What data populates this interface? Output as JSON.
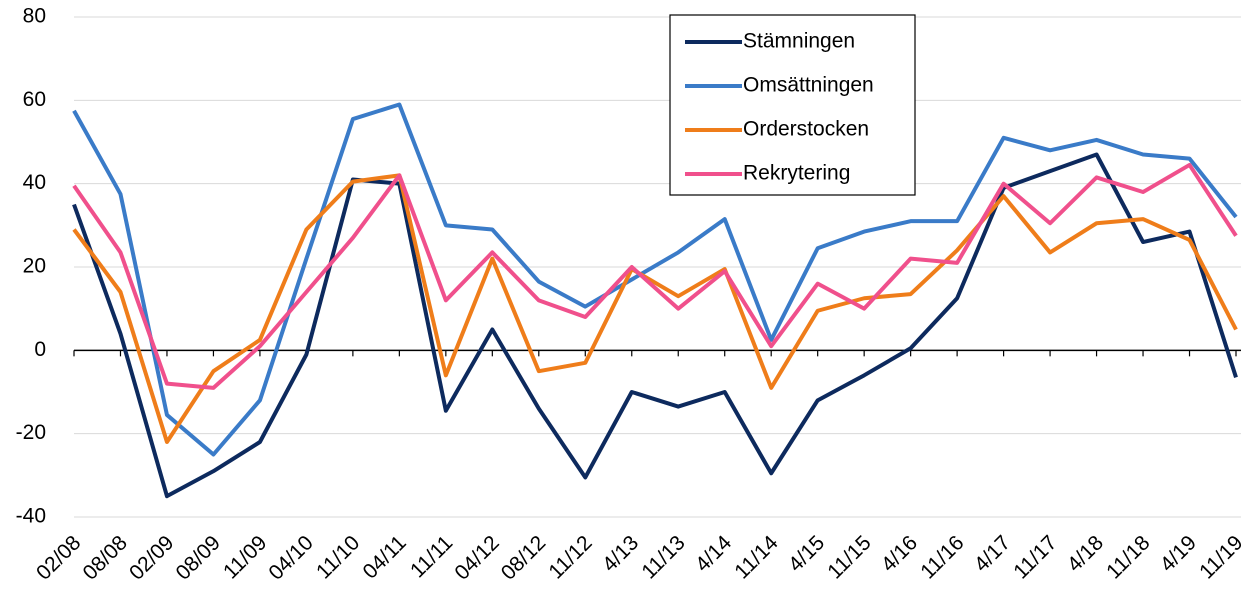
{
  "chart_data": {
    "type": "line",
    "categories": [
      "02/08",
      "08/08",
      "02/09",
      "08/09",
      "11/09",
      "04/10",
      "11/10",
      "04/11",
      "11/11",
      "04/12",
      "08/12",
      "11/12",
      "4/13",
      "11/13",
      "4/14",
      "11/14",
      "4/15",
      "11/15",
      "4/16",
      "11/16",
      "4/17",
      "11/17",
      "4/18",
      "11/18",
      "4/19",
      "11/19"
    ],
    "series": [
      {
        "name": "Stämningen",
        "color": "#0d2a5e",
        "values": [
          35,
          4,
          -35,
          -29,
          -22,
          -1,
          41,
          40,
          -14.5,
          5,
          -14,
          -30.5,
          -10,
          -13.5,
          -10,
          -29.5,
          -12,
          -6,
          0.5,
          12.5,
          39,
          43,
          47,
          26,
          28.5,
          -6.5
        ]
      },
      {
        "name": "Omsättningen",
        "color": "#3a7bc8",
        "values": [
          57.5,
          37.5,
          -15.5,
          -25,
          -12,
          22,
          55.5,
          59,
          30,
          29,
          16.5,
          10.5,
          17,
          23.5,
          31.5,
          2.5,
          24.5,
          28.5,
          31,
          31,
          51,
          48,
          50.5,
          47,
          46,
          32
        ]
      },
      {
        "name": "Orderstocken",
        "color": "#ef7d1a",
        "values": [
          29,
          14,
          -22,
          -5,
          2.5,
          29,
          40.5,
          42,
          -6,
          22,
          -5,
          -3,
          19.5,
          13,
          19.5,
          -9,
          9.5,
          12.5,
          13.5,
          24,
          37,
          23.5,
          30.5,
          31.5,
          26.5,
          5
        ]
      },
      {
        "name": "Rekrytering",
        "color": "#f0508c",
        "values": [
          39.5,
          23.5,
          -8,
          -9,
          1,
          14,
          27,
          42,
          12,
          23.5,
          12,
          8,
          20,
          10,
          19,
          1,
          16,
          10,
          22,
          21,
          40,
          30.5,
          41.5,
          38,
          44.5,
          27.5
        ]
      }
    ],
    "ylim": [
      -40,
      80
    ],
    "yticks": [
      -40,
      -20,
      0,
      20,
      40,
      60,
      80
    ],
    "grid": true,
    "legend": "top"
  }
}
